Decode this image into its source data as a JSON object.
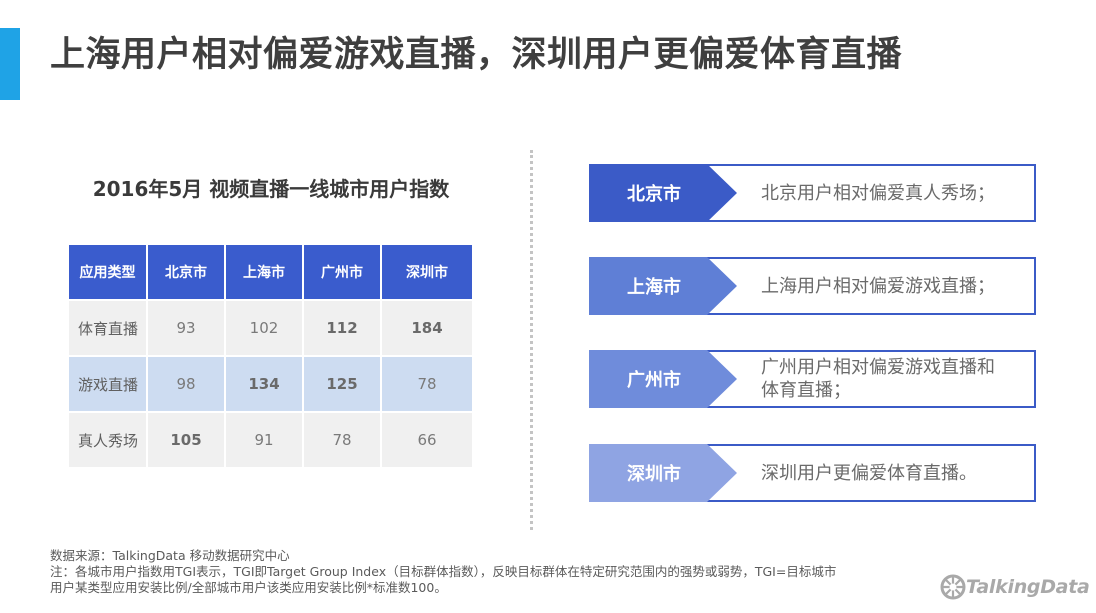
{
  "title": "上海用户相对偏爱游戏直播，深圳用户更偏爱体育直播",
  "table": {
    "title": "2016年5月 视频直播一线城市用户指数",
    "headers": [
      "应用类型",
      "北京市",
      "上海市",
      "广州市",
      "深圳市"
    ],
    "rows": [
      {
        "category": "体育直播",
        "values": [
          "93",
          "102",
          "112",
          "184"
        ],
        "bold": [
          false,
          false,
          true,
          true
        ]
      },
      {
        "category": "游戏直播",
        "values": [
          "98",
          "134",
          "125",
          "78"
        ],
        "bold": [
          false,
          true,
          true,
          false
        ]
      },
      {
        "category": "真人秀场",
        "values": [
          "105",
          "91",
          "78",
          "66"
        ],
        "bold": [
          true,
          false,
          false,
          false
        ]
      }
    ]
  },
  "cities": [
    {
      "name": "北京市",
      "text": "北京用户相对偏爱真人秀场；",
      "color": "#3b5bc7"
    },
    {
      "name": "上海市",
      "text": "上海用户相对偏爱游戏直播；",
      "color": "#5f7fd6"
    },
    {
      "name": "广州市",
      "text": "广州用户相对偏爱游戏直播和体育直播；",
      "color": "#6f8cdb"
    },
    {
      "name": "深圳市",
      "text": "深圳用户更偏爱体育直播。",
      "color": "#8fa4e3"
    }
  ],
  "footnote": {
    "source": "数据来源：TalkingData 移动数据研究中心",
    "note_line1": "注：各城市用户指数用TGI表示，TGI即Target Group Index（目标群体指数），反映目标群体在特定研究范围内的强势或弱势，TGI=目标城市",
    "note_line2": "用户某类型应用安装比例/全部城市用户该类应用安装比例*标准数100。"
  },
  "logo": {
    "text": "TalkingData",
    "icon": "talkingdata-logo-icon"
  }
}
